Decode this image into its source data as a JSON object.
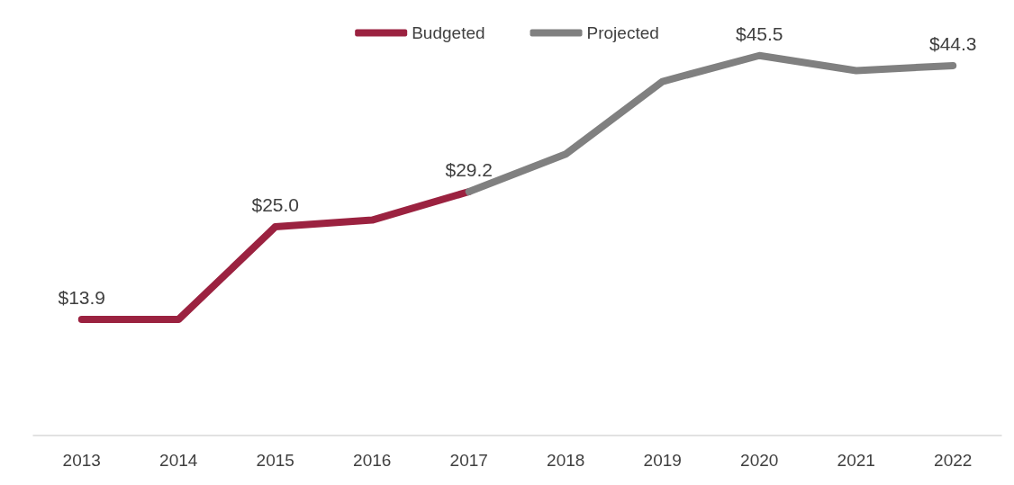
{
  "chart_data": {
    "type": "line",
    "categories": [
      "2013",
      "2014",
      "2015",
      "2016",
      "2017",
      "2018",
      "2019",
      "2020",
      "2021",
      "2022"
    ],
    "series": [
      {
        "name": "Budgeted",
        "color": "#9b2240",
        "values": [
          13.9,
          13.9,
          25.0,
          25.8,
          29.2,
          null,
          null,
          null,
          null,
          null
        ],
        "value_labels": [
          "$13.9",
          null,
          "$25.0",
          null,
          "$29.2",
          null,
          null,
          null,
          null,
          null
        ]
      },
      {
        "name": "Projected",
        "color": "#808080",
        "values": [
          null,
          null,
          null,
          null,
          29.2,
          33.7,
          42.4,
          45.5,
          43.7,
          44.3
        ],
        "value_labels": [
          null,
          null,
          null,
          null,
          null,
          null,
          null,
          "$45.5",
          null,
          "$44.3"
        ]
      }
    ],
    "legend": "top",
    "grid": false,
    "marker": "none",
    "line_style": "solid"
  }
}
